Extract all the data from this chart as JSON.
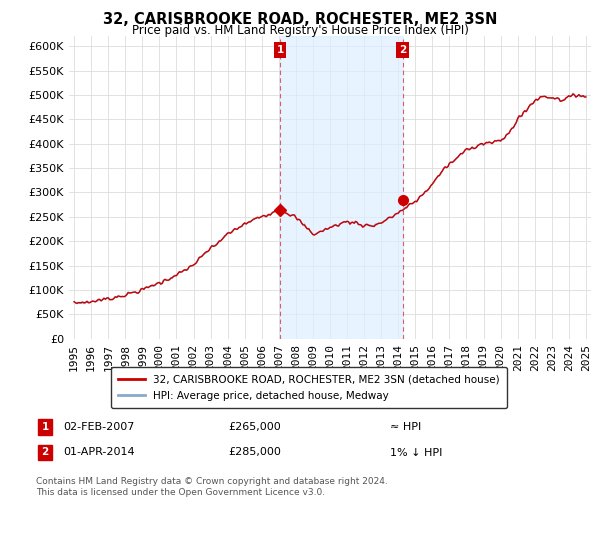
{
  "title": "32, CARISBROOKE ROAD, ROCHESTER, ME2 3SN",
  "subtitle": "Price paid vs. HM Land Registry's House Price Index (HPI)",
  "legend_line1": "32, CARISBROOKE ROAD, ROCHESTER, ME2 3SN (detached house)",
  "legend_line2": "HPI: Average price, detached house, Medway",
  "annotation1_label": "1",
  "annotation1_date": "02-FEB-2007",
  "annotation1_price": "£265,000",
  "annotation1_hpi": "≈ HPI",
  "annotation2_label": "2",
  "annotation2_date": "01-APR-2014",
  "annotation2_price": "£285,000",
  "annotation2_hpi": "1% ↓ HPI",
  "footer": "Contains HM Land Registry data © Crown copyright and database right 2024.\nThis data is licensed under the Open Government Licence v3.0.",
  "price_color": "#cc0000",
  "hpi_color": "#88aacc",
  "marker_color": "#cc0000",
  "shading_color": "#ddeeff",
  "annotation_box_color": "#cc0000",
  "ylim": [
    0,
    620000
  ],
  "yticks": [
    0,
    50000,
    100000,
    150000,
    200000,
    250000,
    300000,
    350000,
    400000,
    450000,
    500000,
    550000,
    600000
  ],
  "background_color": "#ffffff",
  "plot_bg_color": "#ffffff",
  "grid_color": "#dddddd"
}
